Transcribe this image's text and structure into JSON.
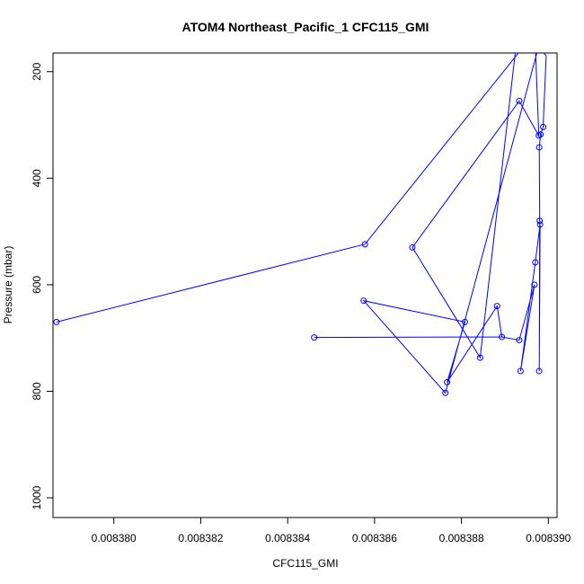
{
  "chart_data": {
    "type": "scatter",
    "title": "ATOM4 Northeast_Pacific_1 CFC115_GMI",
    "xlabel": "CFC115_GMI",
    "ylabel": "Pressure (mbar)",
    "x_ticks": [
      "0.008380",
      "0.008382",
      "0.008384",
      "0.008386",
      "0.008388",
      "0.008390"
    ],
    "y_ticks": [
      "200",
      "400",
      "600",
      "800",
      "1000"
    ],
    "xlim": [
      0.0083786,
      0.0083902
    ],
    "ylim": [
      1037,
      165
    ],
    "y_reversed": true,
    "grid": false,
    "color": "#0000ff",
    "series": [
      {
        "points": [
          {
            "x": 0.00838976,
            "y": 100
          },
          {
            "x": 0.0083897,
            "y": 150
          },
          {
            "x": 0.00838978,
            "y": 320
          },
          {
            "x": 0.00838933,
            "y": 255
          },
          {
            "x": 0.00838687,
            "y": 530
          },
          {
            "x": 0.00838843,
            "y": 737
          },
          {
            "x": 0.00838933,
            "y": 100
          },
          {
            "x": 0.00838972,
            "y": 150
          },
          {
            "x": 0.00838995,
            "y": 170
          },
          {
            "x": 0.00838988,
            "y": 304
          },
          {
            "x": 0.00838982,
            "y": 318
          },
          {
            "x": 0.00838979,
            "y": 342
          },
          {
            "x": 0.0083898,
            "y": 480
          },
          {
            "x": 0.00838979,
            "y": 762
          },
          {
            "x": 0.00838981,
            "y": 487
          },
          {
            "x": 0.0083897,
            "y": 558
          },
          {
            "x": 0.00838936,
            "y": 762
          },
          {
            "x": 0.00838968,
            "y": 600
          },
          {
            "x": 0.00838933,
            "y": 704
          },
          {
            "x": 0.00838893,
            "y": 698
          },
          {
            "x": 0.00838461,
            "y": 699
          },
          {
            "x": 0.00838893,
            "y": 698
          },
          {
            "x": 0.00838882,
            "y": 640
          },
          {
            "x": 0.00838767,
            "y": 783
          },
          {
            "x": 0.00838808,
            "y": 670
          },
          {
            "x": 0.00838575,
            "y": 630
          },
          {
            "x": 0.00838763,
            "y": 803
          },
          {
            "x": 0.00838995,
            "y": 100
          },
          {
            "x": 0.00838578,
            "y": 524
          },
          {
            "x": 0.00837868,
            "y": 670
          },
          {
            "x": 0.00838578,
            "y": 524
          },
          {
            "x": 0.00838995,
            "y": 100
          }
        ],
        "hidden_markers": [
          0,
          1,
          6,
          7,
          8,
          21,
          27,
          30,
          31
        ]
      }
    ]
  }
}
